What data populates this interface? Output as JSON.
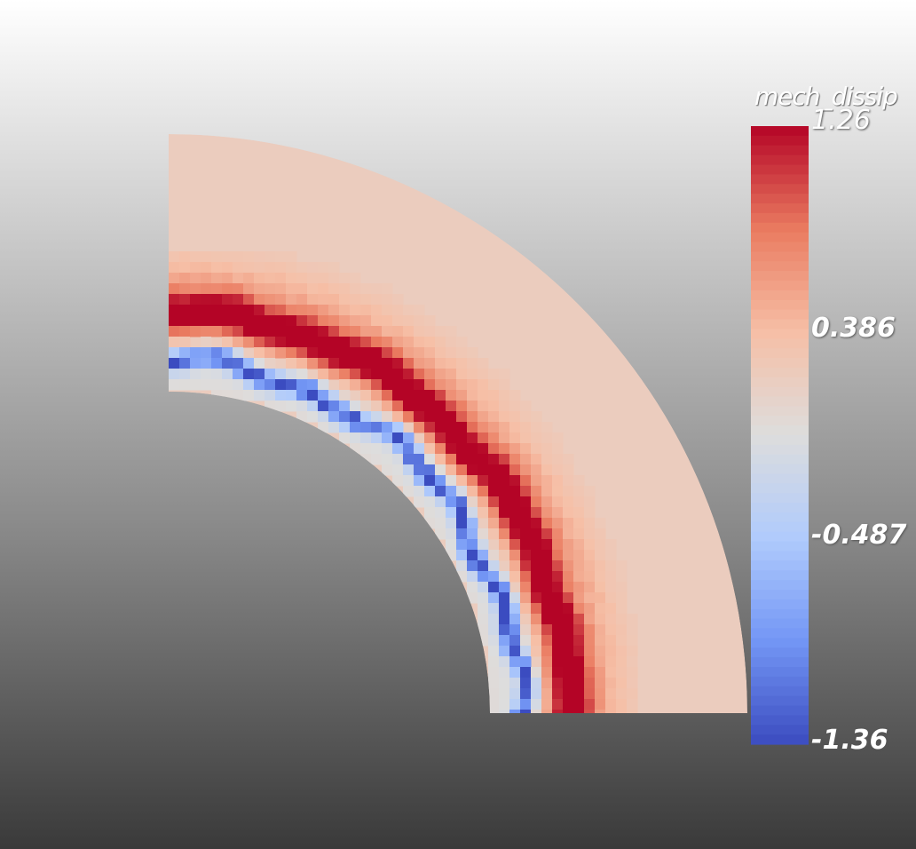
{
  "render": {
    "view": "2D cross-section of a quarter annulus, cell-colored",
    "background_gradient": [
      "#ffffff",
      "#c6c6c6",
      "#8a8a8a",
      "#3a3a3a"
    ],
    "colormap": {
      "name": "Cool to Warm",
      "stops": [
        "#3b4cc0",
        "#7396f5",
        "#b0cbfc",
        "#dddddd",
        "#f6bfa6",
        "#ea7b60",
        "#b40426"
      ]
    }
  },
  "field": {
    "name": "mech_dissip",
    "range": [
      -1.36,
      1.26
    ],
    "background_value": 0.2
  },
  "colorbar": {
    "title": "mech_dissip",
    "max_label": "1.26",
    "tick_labels": [
      "0.386",
      "-0.487"
    ],
    "min_label": "-1.36"
  }
}
